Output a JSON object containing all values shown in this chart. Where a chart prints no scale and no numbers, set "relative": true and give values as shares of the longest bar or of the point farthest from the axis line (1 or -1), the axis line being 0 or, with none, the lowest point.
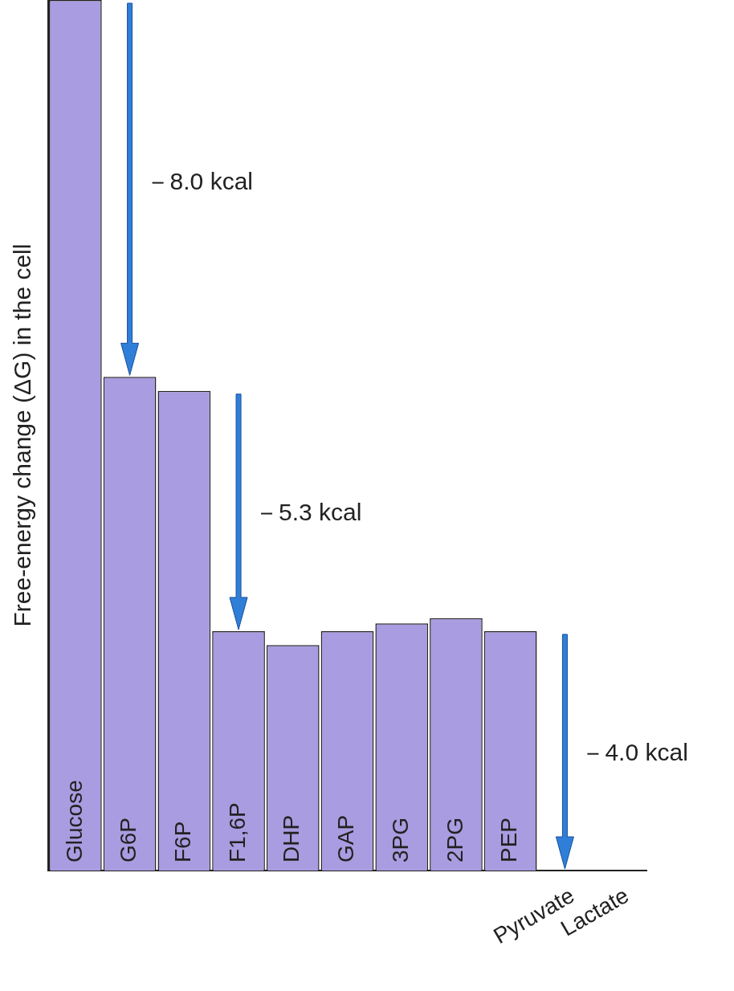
{
  "chart_data": {
    "type": "bar",
    "relative": true,
    "ylabel": "Free-energy change (ΔG) in the cell",
    "categories": [
      "Glucose",
      "G6P",
      "F6P",
      "F1,6P",
      "DHP",
      "GAP",
      "3PG",
      "2PG",
      "PEP",
      "Pyruvate",
      "Lactate"
    ],
    "values": [
      1,
      0.567,
      0.551,
      0.275,
      0.259,
      0.275,
      0.284,
      0.29,
      0.275,
      0,
      0
    ],
    "color": "#a99ce0",
    "annotations": [
      "8.0 kcal",
      "5.3 kcal",
      "4.0 kcal"
    ]
  }
}
